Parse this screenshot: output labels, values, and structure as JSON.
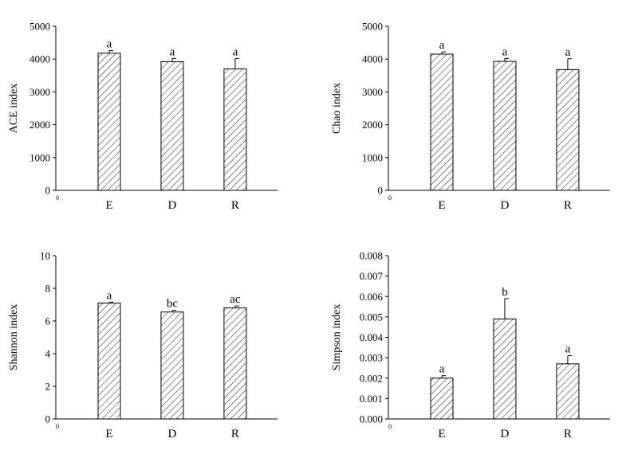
{
  "chart_data": [
    {
      "type": "bar",
      "ylabel": "ACE index",
      "categories": [
        "E",
        "D",
        "R"
      ],
      "values": [
        4180,
        3920,
        3700
      ],
      "errors": [
        80,
        100,
        320
      ],
      "significance": [
        "a",
        "a",
        "a"
      ],
      "ylim": [
        0,
        5000
      ],
      "yticks": [
        "0",
        "1000",
        "2000",
        "3000",
        "4000",
        "5000"
      ],
      "origin_label": "0",
      "pattern": "diagonal-hatch",
      "grid": false
    },
    {
      "type": "bar",
      "ylabel": "Chao index",
      "categories": [
        "E",
        "D",
        "R"
      ],
      "values": [
        4150,
        3930,
        3680
      ],
      "errors": [
        70,
        90,
        330
      ],
      "significance": [
        "a",
        "a",
        "a"
      ],
      "ylim": [
        0,
        5000
      ],
      "yticks": [
        "0",
        "1000",
        "2000",
        "3000",
        "4000",
        "5000"
      ],
      "origin_label": "0",
      "pattern": "diagonal-hatch",
      "grid": false
    },
    {
      "type": "bar",
      "ylabel": "Shannon index",
      "categories": [
        "E",
        "D",
        "R"
      ],
      "values": [
        7.1,
        6.55,
        6.8
      ],
      "errors": [
        0.05,
        0.1,
        0.12
      ],
      "significance": [
        "a",
        "bc",
        "ac"
      ],
      "ylim": [
        0,
        10
      ],
      "yticks": [
        "0",
        "2",
        "4",
        "6",
        "8",
        "10"
      ],
      "origin_label": "0",
      "pattern": "diagonal-hatch",
      "grid": false
    },
    {
      "type": "bar",
      "ylabel": "Simpson index",
      "categories": [
        "E",
        "D",
        "R"
      ],
      "values": [
        0.002,
        0.0049,
        0.0027
      ],
      "errors": [
        0.00012,
        0.001,
        0.0004
      ],
      "significance": [
        "a",
        "b",
        "a"
      ],
      "ylim": [
        0,
        0.008
      ],
      "yticks": [
        "0.000",
        "0.001",
        "0.002",
        "0.003",
        "0.004",
        "0.005",
        "0.006",
        "0.007",
        "0.008"
      ],
      "origin_label": "0",
      "pattern": "diagonal-hatch",
      "grid": false
    }
  ]
}
